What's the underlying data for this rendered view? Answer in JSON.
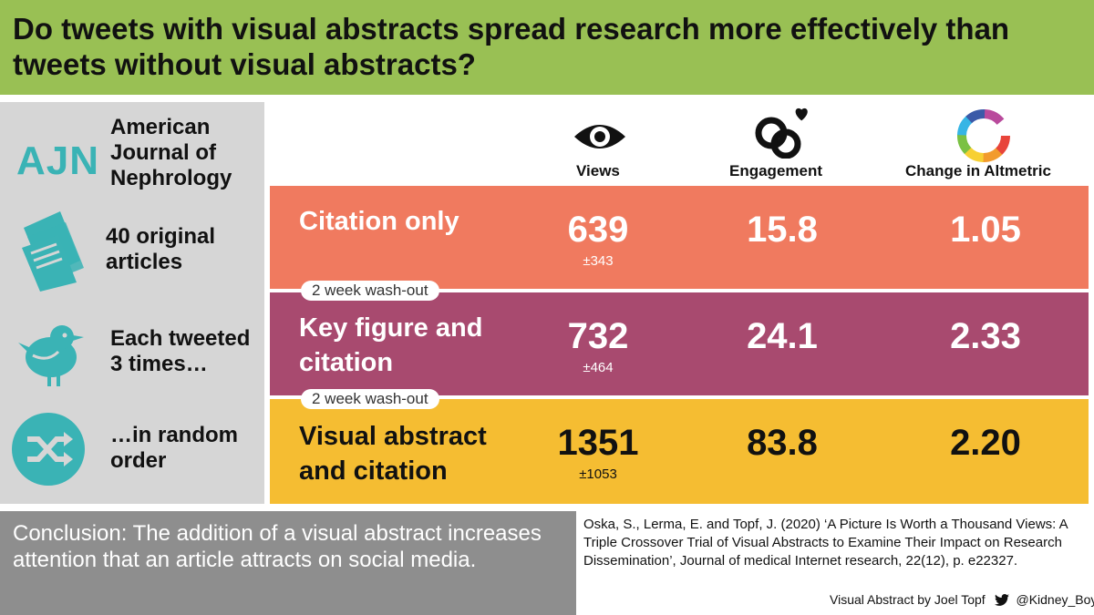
{
  "title": "Do tweets with visual abstracts spread research more effectively than tweets without visual abstracts?",
  "left_panel": {
    "journal_logo": "AJN",
    "journal_name": "American Journal of Nephrology",
    "articles": "40 original articles",
    "tweeted": "Each tweeted 3 times…",
    "order": "…in random order"
  },
  "columns": {
    "views": "Views",
    "engagement": "Engagement",
    "altmetric": "Change in Altmetric"
  },
  "rows": [
    {
      "name": "Citation only",
      "views": "639",
      "views_sd": "±343",
      "engagement": "15.8",
      "altmetric": "1.05",
      "color": "#f07a5f"
    },
    {
      "name": "Key figure and citation",
      "views": "732",
      "views_sd": "±464",
      "engagement": "24.1",
      "altmetric": "2.33",
      "color": "#a84a6f"
    },
    {
      "name": "Visual abstract and citation",
      "views": "1351",
      "views_sd": "±1053",
      "engagement": "83.8",
      "altmetric": "2.20",
      "color": "#f5bd32"
    }
  ],
  "washout_label_1": "2 week wash-out",
  "washout_label_2": "2 week wash-out",
  "conclusion": "Conclusion: The addition of a visual abstract increases attention that an article attracts on social media.",
  "citation": "Oska, S., Lerma, E. and Topf, J. (2020) ‘A Picture Is Worth a Thousand Views: A Triple Crossover Trial of Visual Abstracts to Examine Their Impact on Research Dissemination’, Journal of medical Internet research, 22(12), p. e22327.",
  "credit": {
    "author": "Visual Abstract by Joel Topf",
    "handle": "@Kidney_Boy"
  },
  "colors": {
    "title_bg": "#99c054",
    "teal_icon": "#3ab3b5",
    "left_bg": "#d6d6d6",
    "conclusion_bg": "#8e8e8e"
  }
}
